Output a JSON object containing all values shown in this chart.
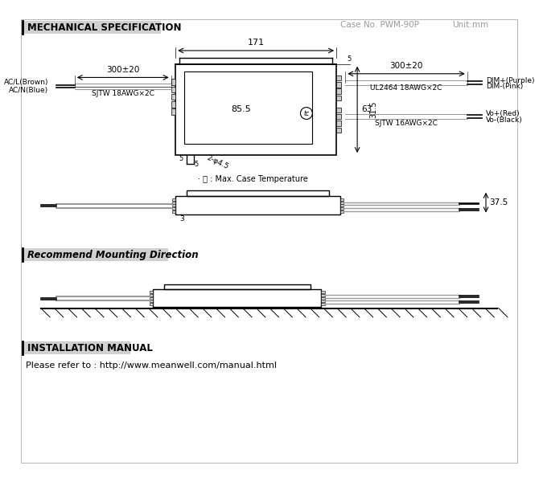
{
  "title_mech": "MECHANICAL SPECIFICATION",
  "case_no": "Case No. PWM-90P",
  "unit": "Unit:mm",
  "rec_mount_title": "Recommend Mounting Direction",
  "install_title": "INSTALLATION MANUAL",
  "install_text": "Please refer to : http://www.meanwell.com/manual.html",
  "dim_171": "171",
  "dim_85_5": "85.5",
  "dim_63": "63",
  "dim_31_5": "31.5",
  "dim_300_left": "300±20",
  "dim_300_right": "300±20",
  "dim_5a": "5",
  "dim_5b": "5",
  "dim_5c": "5",
  "dim_2phi45": "2-φ4.5",
  "dim_37_5": "37.5",
  "dim_3": "3",
  "label_acl": "AC/L(Brown)",
  "label_acn": "AC/N(Blue)",
  "label_sjtw_left": "SJTW 18AWG×2C",
  "label_ul2464": "UL2464 18AWG×2C",
  "label_sjtw_right": "SJTW 16AWG×2C",
  "label_dim_plus": "DIM+(Purple)",
  "label_dim_minus": "DIM-(Pink)",
  "label_vo_plus": "Vo+(Red)",
  "label_vo_minus": "Vo-(Black)",
  "label_tc": "· Ⓣ : Max. Case Temperature",
  "bg_color": "#ffffff",
  "line_color": "#000000",
  "gray_color": "#999999",
  "light_gray": "#cccccc",
  "title_bg": "#d0d0d0"
}
